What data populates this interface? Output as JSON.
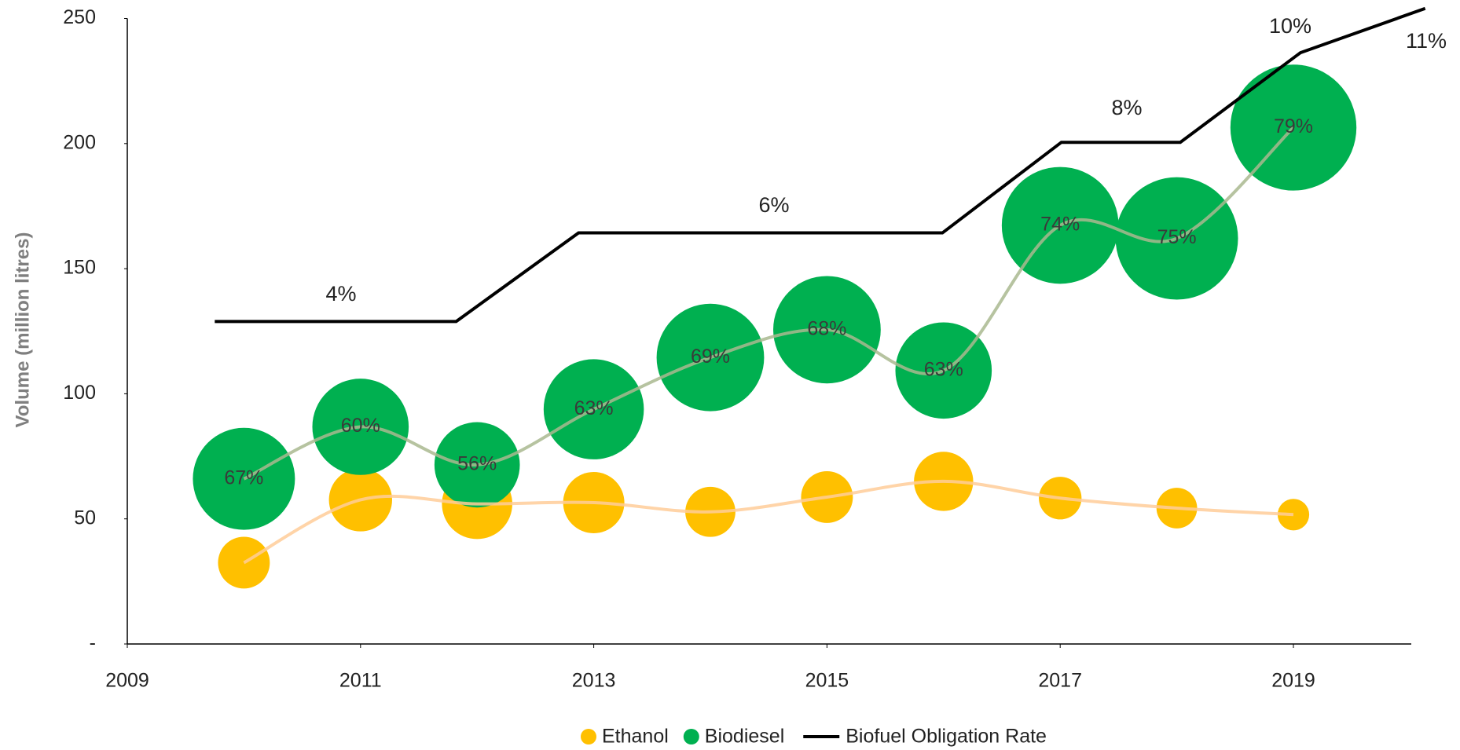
{
  "chart_data": {
    "type": "bubble",
    "y_axis_label": "Volume (million litres)",
    "xlim": [
      2009,
      2020.2
    ],
    "xticks": [
      2009,
      2011,
      2013,
      2015,
      2017,
      2019
    ],
    "ylim": [
      0,
      250
    ],
    "yticks": [
      {
        "value": 0,
        "label": "-"
      },
      50,
      100,
      150,
      200,
      250
    ],
    "x": [
      2010,
      2011,
      2012,
      2013,
      2014,
      2015,
      2016,
      2017,
      2018,
      2019
    ],
    "series": [
      {
        "name": "Ethanol",
        "color": "#ffc000",
        "line_color": "#ffcc99",
        "values": [
          32.5,
          57.6,
          56,
          56.5,
          52.8,
          58.7,
          65,
          58.3,
          54.3,
          51.7
        ],
        "sizes": [
          7.8,
          11.6,
          14.4,
          10.9,
          7.3,
          7.8,
          10.2,
          5.3,
          4.8,
          2.9
        ]
      },
      {
        "name": "Biodiesel",
        "color": "#00b050",
        "line_color": "#a9b98f",
        "values": [
          66,
          86.8,
          71.6,
          93.8,
          114.5,
          125.6,
          109.3,
          167.3,
          162.1,
          206.4
        ],
        "sizes": [
          30.3,
          27,
          21.2,
          29.2,
          33.6,
          33.6,
          27,
          39.7,
          43.6,
          46.2
        ],
        "labels": [
          "67%",
          "60%",
          "56%",
          "63%",
          "69%",
          "68%",
          "63%",
          "74%",
          "75%",
          "79%"
        ]
      }
    ],
    "obligation": {
      "name": "Biofuel Obligation Rate",
      "color": "#000000",
      "x": [
        2009.75,
        2011.82,
        2012.87,
        2015.99,
        2017.01,
        2018.03,
        2019.06,
        2020.13
      ],
      "values": [
        128.9,
        128.9,
        164.3,
        164.3,
        200.5,
        200.5,
        236.3,
        254
      ],
      "labels": [
        "4%",
        "6%",
        "8%",
        "10%",
        "11%"
      ]
    }
  }
}
